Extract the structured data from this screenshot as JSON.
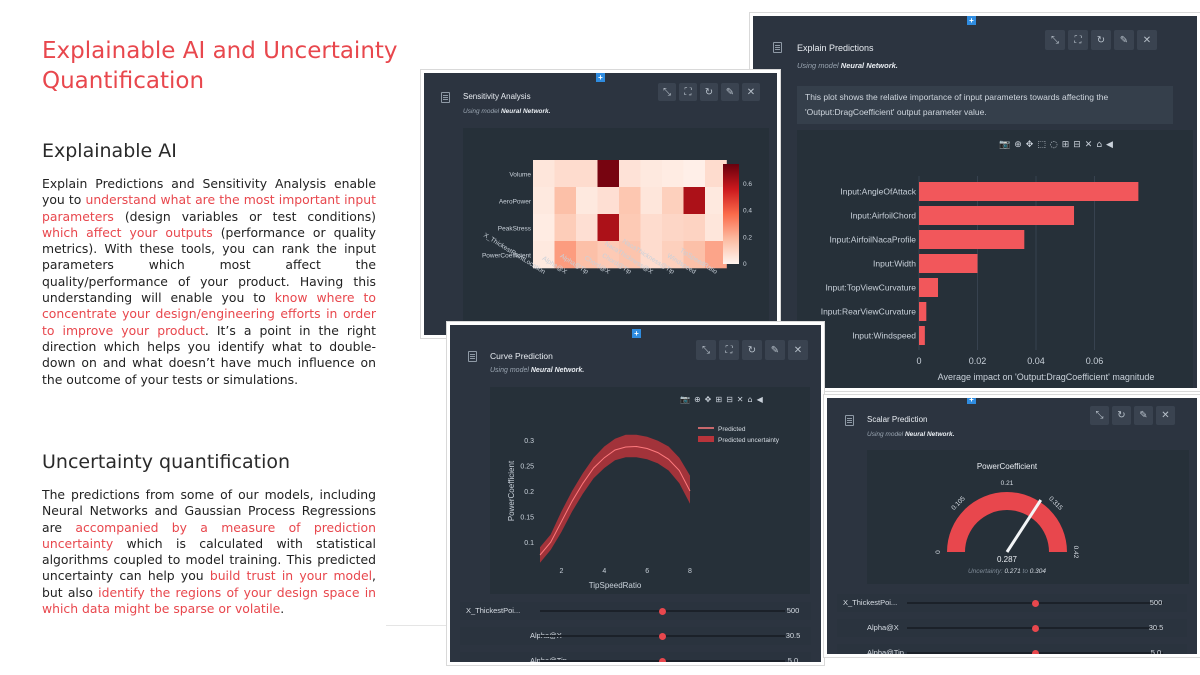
{
  "left": {
    "title": "Explainable AI and Uncertainty Quantification",
    "section1_heading": "Explainable AI",
    "section1_parts": [
      "Explain Predictions and Sensitivity Analysis enable you to ",
      "understand what are the most important input parameters",
      " (design variables or test conditions) ",
      "which affect your outputs",
      " (performance or quality metrics). With these tools, you can rank the input parameters which most affect the quality/performance of your product. Having this understanding will enable you to ",
      "know where to concentrate your design/engineering efforts in order to improve your product",
      ". It’s a point in the right direction which helps you identify what to double-down on and what doesn’t have much influence on the outcome of your tests or simulations."
    ],
    "section2_heading": "Uncertainty quantification",
    "section2_parts": [
      "The predictions from some of our models, including Neural Networks and Gaussian Process Regressions are ",
      "accompanied by a measure of prediction uncertainty",
      " which is calculated with statistical algorithms coupled to model training. This predicted uncertainty can help you ",
      "build trust in your model",
      ", but also ",
      "identify the regions of your design space in which data might be sparse or volatile",
      "."
    ]
  },
  "colors": {
    "accent": "#e8474d",
    "panel_bg": "#2c3440",
    "plot_bg": "#263039",
    "bar": "#f2575b"
  },
  "explain": {
    "title": "Explain Predictions",
    "model_prefix": "Using model",
    "model": "Neural Network.",
    "description": "This plot shows the relative importance of input parameters towards affecting the 'Output:DragCoefficient' output parameter value.",
    "chart_data": {
      "type": "bar",
      "orientation": "horizontal",
      "categories": [
        "Input:AngleOfAttack",
        "Input:AirfoilChord",
        "Input:AirfoilNacaProfile",
        "Input:Width",
        "Input:TopViewCurvature",
        "Input:RearViewCurvature",
        "Input:Windspeed"
      ],
      "values": [
        0.075,
        0.053,
        0.036,
        0.02,
        0.0065,
        0.0025,
        0.002
      ],
      "xlabel": "Average impact on 'Output:DragCoefficient' magnitude",
      "xticks": [
        "0",
        "0.02",
        "0.04",
        "0.06"
      ],
      "xlim": [
        0,
        0.08
      ]
    }
  },
  "sensitivity": {
    "title": "Sensitivity Analysis",
    "model_prefix": "Using model",
    "model": "Neural Network.",
    "chart_data": {
      "type": "heatmap",
      "rows": [
        "Volume",
        "AeroPower",
        "PeakStress",
        "PowerCoefficient"
      ],
      "columns": [
        "X_ThickestPointLocation",
        "Alpha@X",
        "Alpha@Tip",
        "Chord@X",
        "Chord@Tip",
        "NacaThickness@X",
        "NacaThickness@Tip",
        "Windspeed",
        "TipSpeedRatio"
      ],
      "values": [
        [
          0.05,
          0.08,
          0.08,
          0.72,
          0.06,
          0.04,
          0.03,
          0.02,
          0.08
        ],
        [
          0.04,
          0.17,
          0.04,
          0.07,
          0.15,
          0.05,
          0.12,
          0.62,
          0.04
        ],
        [
          0.03,
          0.13,
          0.07,
          0.62,
          0.14,
          0.08,
          0.1,
          0.11,
          0.05
        ],
        [
          0.04,
          0.26,
          0.17,
          0.14,
          0.16,
          0.08,
          0.12,
          0.17,
          0.24
        ]
      ],
      "colorbar_ticks": [
        "0.6",
        "0.4",
        "0.2",
        "0"
      ],
      "zlim": [
        0,
        0.75
      ]
    }
  },
  "curve": {
    "title": "Curve Prediction",
    "model_prefix": "Using model",
    "model": "Neural Network.",
    "chart_data": {
      "type": "line",
      "x": [
        1,
        1.5,
        2,
        2.5,
        3,
        3.5,
        4,
        4.5,
        5,
        5.5,
        6,
        6.5,
        7,
        7.5,
        8
      ],
      "series": [
        {
          "name": "Predicted",
          "values": [
            0.075,
            0.1,
            0.14,
            0.18,
            0.215,
            0.245,
            0.265,
            0.28,
            0.286,
            0.287,
            0.283,
            0.275,
            0.262,
            0.24,
            0.2
          ]
        },
        {
          "name": "Predicted uncertainty",
          "lower": [
            0.06,
            0.085,
            0.12,
            0.16,
            0.195,
            0.225,
            0.245,
            0.26,
            0.266,
            0.266,
            0.262,
            0.254,
            0.24,
            0.215,
            0.175
          ],
          "upper": [
            0.09,
            0.115,
            0.16,
            0.2,
            0.235,
            0.265,
            0.287,
            0.302,
            0.31,
            0.31,
            0.306,
            0.298,
            0.287,
            0.265,
            0.23
          ]
        }
      ],
      "xlabel": "TipSpeedRatio",
      "ylabel": "PowerCoefficient",
      "xticks": [
        "2",
        "4",
        "6",
        "8"
      ],
      "yticks": [
        "0.1",
        "0.15",
        "0.2",
        "0.25",
        "0.3"
      ],
      "xlim": [
        1,
        8
      ],
      "ylim": [
        0.075,
        0.325
      ]
    },
    "sliders": [
      {
        "label": "X_ThickestPoi...",
        "value": "500",
        "fraction": 0.5
      },
      {
        "label": "Alpha@X",
        "value": "30.5",
        "fraction": 0.5
      },
      {
        "label": "Alpha@Tip",
        "value": "5.0",
        "fraction": 0.5
      }
    ]
  },
  "scalar": {
    "title": "Scalar Prediction",
    "model_prefix": "Using model",
    "model": "Neural Network.",
    "gauge_title": "PowerCoefficient",
    "gauge_labels": [
      "0",
      "0.105",
      "0.21",
      "0.315",
      "0.42"
    ],
    "value": 0.287,
    "value_text": "0.287",
    "range": [
      0,
      0.42
    ],
    "uncertainty_prefix": "Uncertainty:",
    "uncertainty_low": "0.271",
    "uncertainty_mid": "to",
    "uncertainty_high": "0.304",
    "sliders": [
      {
        "label": "X_ThickestPoi...",
        "value": "500",
        "fraction": 0.5
      },
      {
        "label": "Alpha@X",
        "value": "30.5",
        "fraction": 0.5
      },
      {
        "label": "Alpha@Tip",
        "value": "5.0",
        "fraction": 0.5
      }
    ]
  },
  "legend": {
    "predicted": "Predicted",
    "uncertainty": "Predicted uncertainty"
  }
}
